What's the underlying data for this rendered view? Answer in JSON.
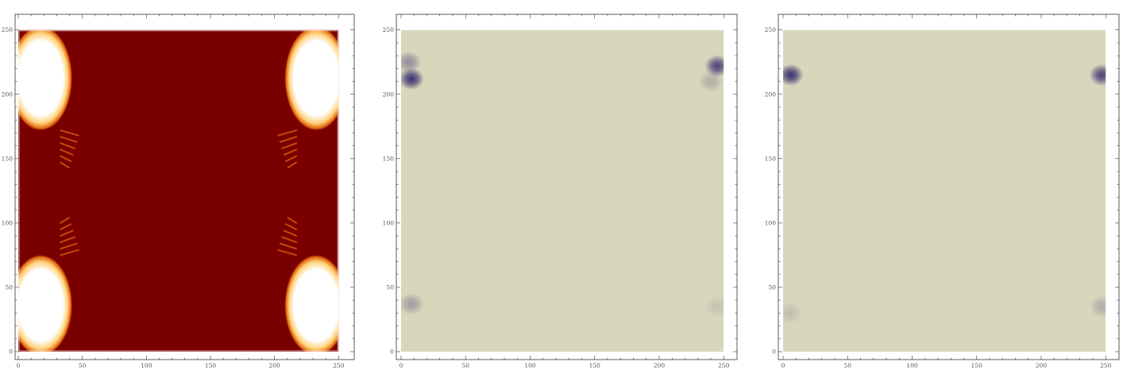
{
  "chart_data": [
    {
      "type": "heatmap",
      "title": "",
      "xlabel": "",
      "ylabel": "",
      "xlim": [
        0,
        256
      ],
      "ylim": [
        0,
        256
      ],
      "x_ticks": [
        0,
        50,
        100,
        150,
        200,
        250
      ],
      "y_ticks": [
        0,
        50,
        100,
        150,
        200,
        250
      ],
      "grid": false,
      "colormap": "dark-red to orange to white",
      "colors": {
        "background": "#7a0000",
        "mid": "#e0620a",
        "high": "#ffffff"
      },
      "features": {
        "white_regions": [
          {
            "corner": "top-left",
            "x": [
              0,
              35
            ],
            "y": [
              175,
              250
            ]
          },
          {
            "corner": "top-right",
            "x": [
              215,
              250
            ],
            "y": [
              175,
              250
            ]
          },
          {
            "corner": "bottom-left",
            "x": [
              0,
              35
            ],
            "y": [
              0,
              72
            ]
          },
          {
            "corner": "bottom-right",
            "x": [
              215,
              250
            ],
            "y": [
              0,
              72
            ]
          }
        ],
        "central_band": {
          "x": [
            40,
            212
          ],
          "y": [
            0,
            250
          ]
        },
        "side_lobes": {
          "y": [
            75,
            170
          ]
        }
      }
    },
    {
      "type": "heatmap",
      "title": "",
      "xlabel": "",
      "ylabel": "",
      "xlim": [
        0,
        256
      ],
      "ylim": [
        0,
        256
      ],
      "x_ticks": [
        0,
        50,
        100,
        150,
        200,
        250
      ],
      "y_ticks": [
        0,
        50,
        100,
        150,
        200,
        250
      ],
      "grid": false,
      "colormap": "beige background with dark purple spots",
      "colors": {
        "background": "#d9d7bb",
        "spot": "#3a3170"
      },
      "features": {
        "spots": [
          {
            "x": 8,
            "y": 212,
            "intensity": 1.0
          },
          {
            "x": 6,
            "y": 225,
            "intensity": 0.45
          },
          {
            "x": 245,
            "y": 222,
            "intensity": 0.9
          },
          {
            "x": 240,
            "y": 210,
            "intensity": 0.25
          },
          {
            "x": 8,
            "y": 37,
            "intensity": 0.35
          },
          {
            "x": 245,
            "y": 35,
            "intensity": 0.12
          }
        ]
      }
    },
    {
      "type": "heatmap",
      "title": "",
      "xlabel": "",
      "ylabel": "",
      "xlim": [
        0,
        256
      ],
      "ylim": [
        0,
        256
      ],
      "x_ticks": [
        0,
        50,
        100,
        150,
        200,
        250
      ],
      "y_ticks": [
        0,
        50,
        100,
        150,
        200,
        250
      ],
      "grid": false,
      "colormap": "beige background with dark purple spots",
      "colors": {
        "background": "#d9d7bb",
        "spot": "#3a3170"
      },
      "features": {
        "spots": [
          {
            "x": 6,
            "y": 215,
            "intensity": 1.0
          },
          {
            "x": 247,
            "y": 215,
            "intensity": 0.9
          },
          {
            "x": 5,
            "y": 30,
            "intensity": 0.15
          },
          {
            "x": 247,
            "y": 35,
            "intensity": 0.25
          }
        ]
      }
    }
  ]
}
